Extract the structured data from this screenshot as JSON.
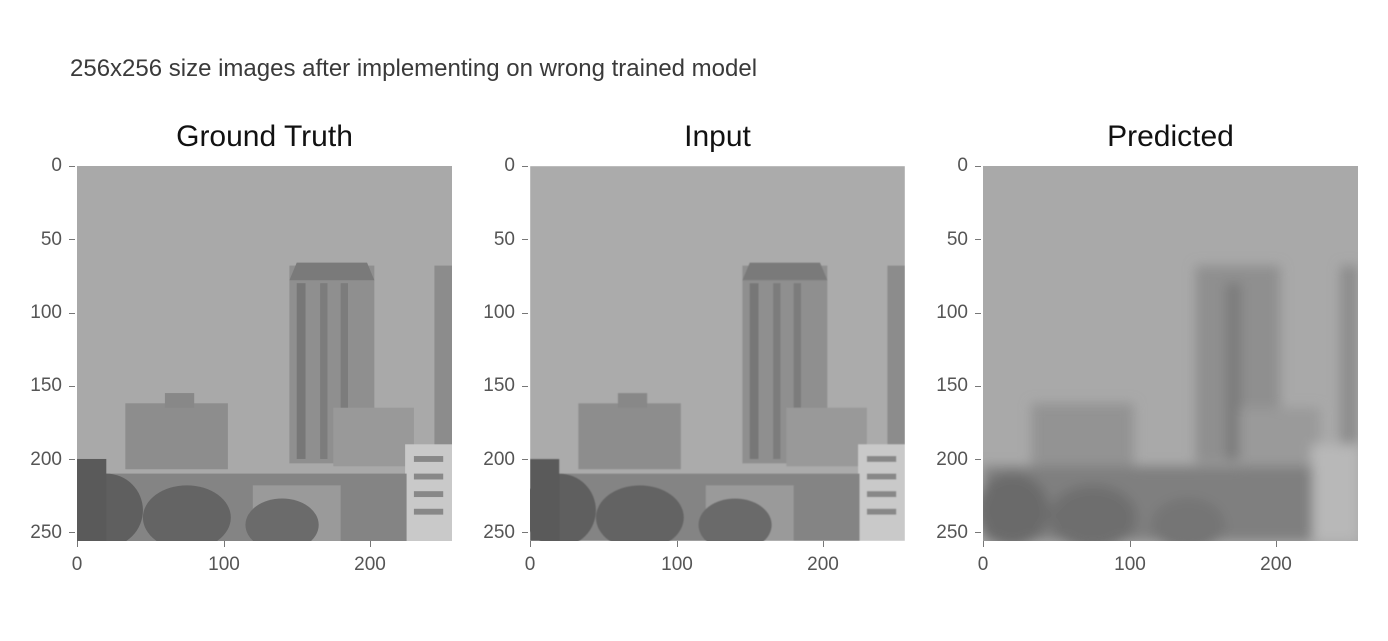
{
  "caption": "256x256 size images after implementing on wrong trained model",
  "panels": [
    {
      "title": "Ground Truth",
      "y_ticks": [
        "0",
        "50",
        "100",
        "150",
        "200",
        "250"
      ],
      "x_ticks": [
        "0",
        "100",
        "200"
      ],
      "blur": 0
    },
    {
      "title": "Input",
      "y_ticks": [
        "0",
        "50",
        "100",
        "150",
        "200",
        "250"
      ],
      "x_ticks": [
        "0",
        "100",
        "200"
      ],
      "blur": 0.4
    },
    {
      "title": "Predicted",
      "y_ticks": [
        "0",
        "50",
        "100",
        "150",
        "200",
        "250"
      ],
      "x_ticks": [
        "0",
        "100",
        "200"
      ],
      "blur": 4
    }
  ],
  "colors": {
    "sky": "#a9a9a9",
    "building": "#8c8c8c",
    "dark": "#6f6f6f",
    "trees": "#5f5f5f"
  }
}
